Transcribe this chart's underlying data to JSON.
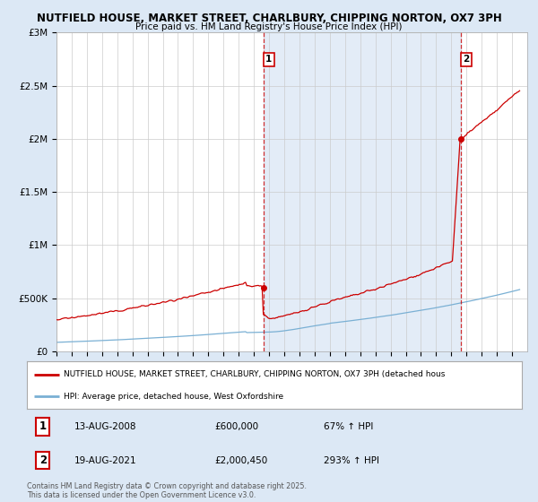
{
  "title_line1": "NUTFIELD HOUSE, MARKET STREET, CHARLBURY, CHIPPING NORTON, OX7 3PH",
  "title_line2": "Price paid vs. HM Land Registry's House Price Index (HPI)",
  "bg_color": "#dce8f5",
  "plot_bg_color": "#ffffff",
  "plot_fill_color": "#dce8f5",
  "red_color": "#cc0000",
  "blue_color": "#7ab0d4",
  "vline_color": "#cc0000",
  "xmin": 1995.0,
  "xmax": 2026.0,
  "ymin": 0,
  "ymax": 3000000,
  "yticks": [
    0,
    500000,
    1000000,
    1500000,
    2000000,
    2500000,
    3000000
  ],
  "ytick_labels": [
    "£0",
    "£500K",
    "£1M",
    "£1.5M",
    "£2M",
    "£2.5M",
    "£3M"
  ],
  "sale1_x": 2008.617,
  "sale1_y": 600000,
  "sale2_x": 2021.633,
  "sale2_y": 2000450,
  "legend_line1": "NUTFIELD HOUSE, MARKET STREET, CHARLBURY, CHIPPING NORTON, OX7 3PH (detached hous",
  "legend_line2": "HPI: Average price, detached house, West Oxfordshire",
  "table_row1": [
    "1",
    "13-AUG-2008",
    "£600,000",
    "67% ↑ HPI"
  ],
  "table_row2": [
    "2",
    "19-AUG-2021",
    "£2,000,450",
    "293% ↑ HPI"
  ],
  "copyright": "Contains HM Land Registry data © Crown copyright and database right 2025.\nThis data is licensed under the Open Government Licence v3.0."
}
